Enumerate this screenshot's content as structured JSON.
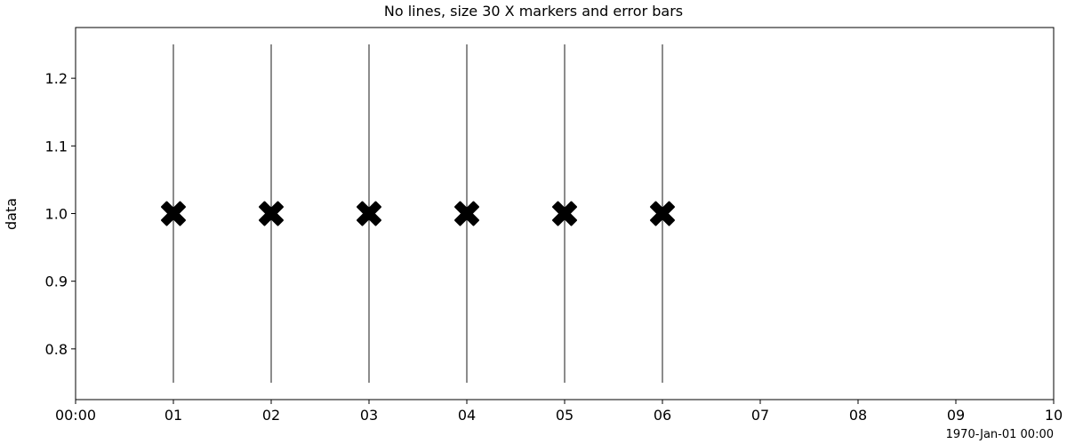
{
  "chart_data": {
    "type": "scatter",
    "title": "No lines, size 30 X markers and error bars",
    "xlabel": "",
    "ylabel": "data",
    "x_unit": "hours",
    "xlim": [
      0,
      10
    ],
    "ylim": [
      0.725,
      1.275
    ],
    "x_ticks": [
      0,
      1,
      2,
      3,
      4,
      5,
      6,
      7,
      8,
      9,
      10
    ],
    "x_tick_labels": [
      "00:00",
      "01",
      "02",
      "03",
      "04",
      "05",
      "06",
      "07",
      "08",
      "09",
      "10"
    ],
    "y_ticks": [
      0.8,
      0.9,
      1.0,
      1.1,
      1.2
    ],
    "y_tick_labels": [
      "0.8",
      "0.9",
      "1.0",
      "1.1",
      "1.2"
    ],
    "x_offset_label": "1970-Jan-01 00:00",
    "marker": "X",
    "marker_color": "#000000",
    "grid": false,
    "series": [
      {
        "x": [
          1,
          2,
          3,
          4,
          5,
          6
        ],
        "y": [
          1.0,
          1.0,
          1.0,
          1.0,
          1.0,
          1.0
        ],
        "yerr": [
          0.25,
          0.25,
          0.25,
          0.25,
          0.25,
          0.25
        ]
      }
    ]
  }
}
